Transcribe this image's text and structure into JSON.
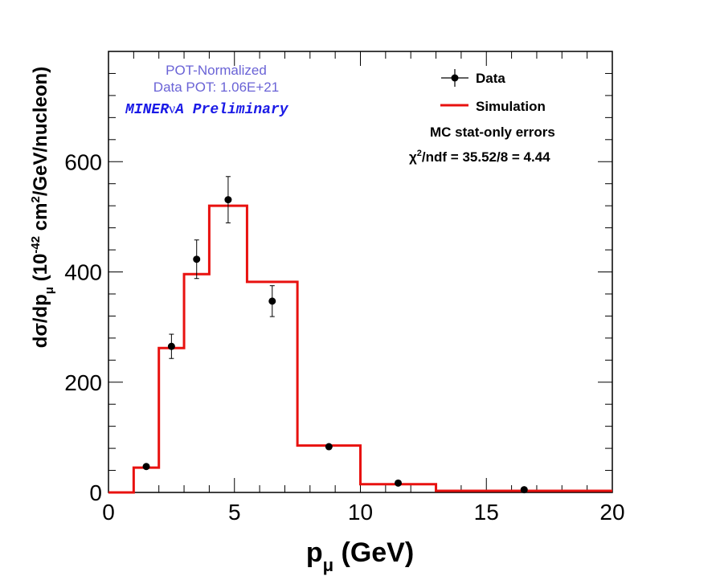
{
  "chart_data": {
    "type": "line",
    "xlabel": "p",
    "xlabel_sub": "μ",
    "xlabel_unit": " (GeV)",
    "ylabel_parts": {
      "pre": "dσ/dp",
      "sub": "μ",
      "mid": " (10",
      "sup": "-42",
      "mid2": " cm",
      "sup2": "2",
      "post": "/GeV/nucleon)"
    },
    "xlim": [
      0,
      20
    ],
    "ylim": [
      0,
      800
    ],
    "xticks": [
      0,
      5,
      10,
      15,
      20
    ],
    "xtick_labels": [
      "0",
      "5",
      "10",
      "15",
      "20"
    ],
    "yticks": [
      0,
      200,
      400,
      600
    ],
    "ytick_labels": [
      "0",
      "200",
      "400",
      "600"
    ],
    "grid": false,
    "legend_position": "top-right",
    "series": [
      {
        "name": "Data",
        "kind": "points_with_errors",
        "color": "#000000",
        "x": [
          1.5,
          2.5,
          3.5,
          4.75,
          6.5,
          8.75,
          11.5,
          16.5
        ],
        "y": [
          47,
          265,
          423,
          531,
          347,
          83,
          17,
          5
        ],
        "yerr": [
          4,
          22,
          35,
          42,
          28,
          6,
          2,
          1
        ]
      },
      {
        "name": "Simulation",
        "kind": "step",
        "color": "#e8110f",
        "bin_edges": [
          0,
          1,
          2,
          3,
          4,
          5.5,
          7.5,
          10,
          13,
          20
        ],
        "values": [
          0,
          45,
          262,
          396,
          520,
          382,
          85,
          15,
          3
        ]
      }
    ],
    "annotations": {
      "pot_normalized": "POT-Normalized",
      "data_pot": "Data POT: 1.06E+21",
      "preliminary_pre": "MINER",
      "preliminary_nu": "ν",
      "preliminary_post": "A Preliminary",
      "mc_errors": "MC stat-only errors",
      "chi2_chi": "χ",
      "chi2_sup": "2",
      "chi2_rest": "/ndf = 35.52/8 = 4.44"
    }
  }
}
